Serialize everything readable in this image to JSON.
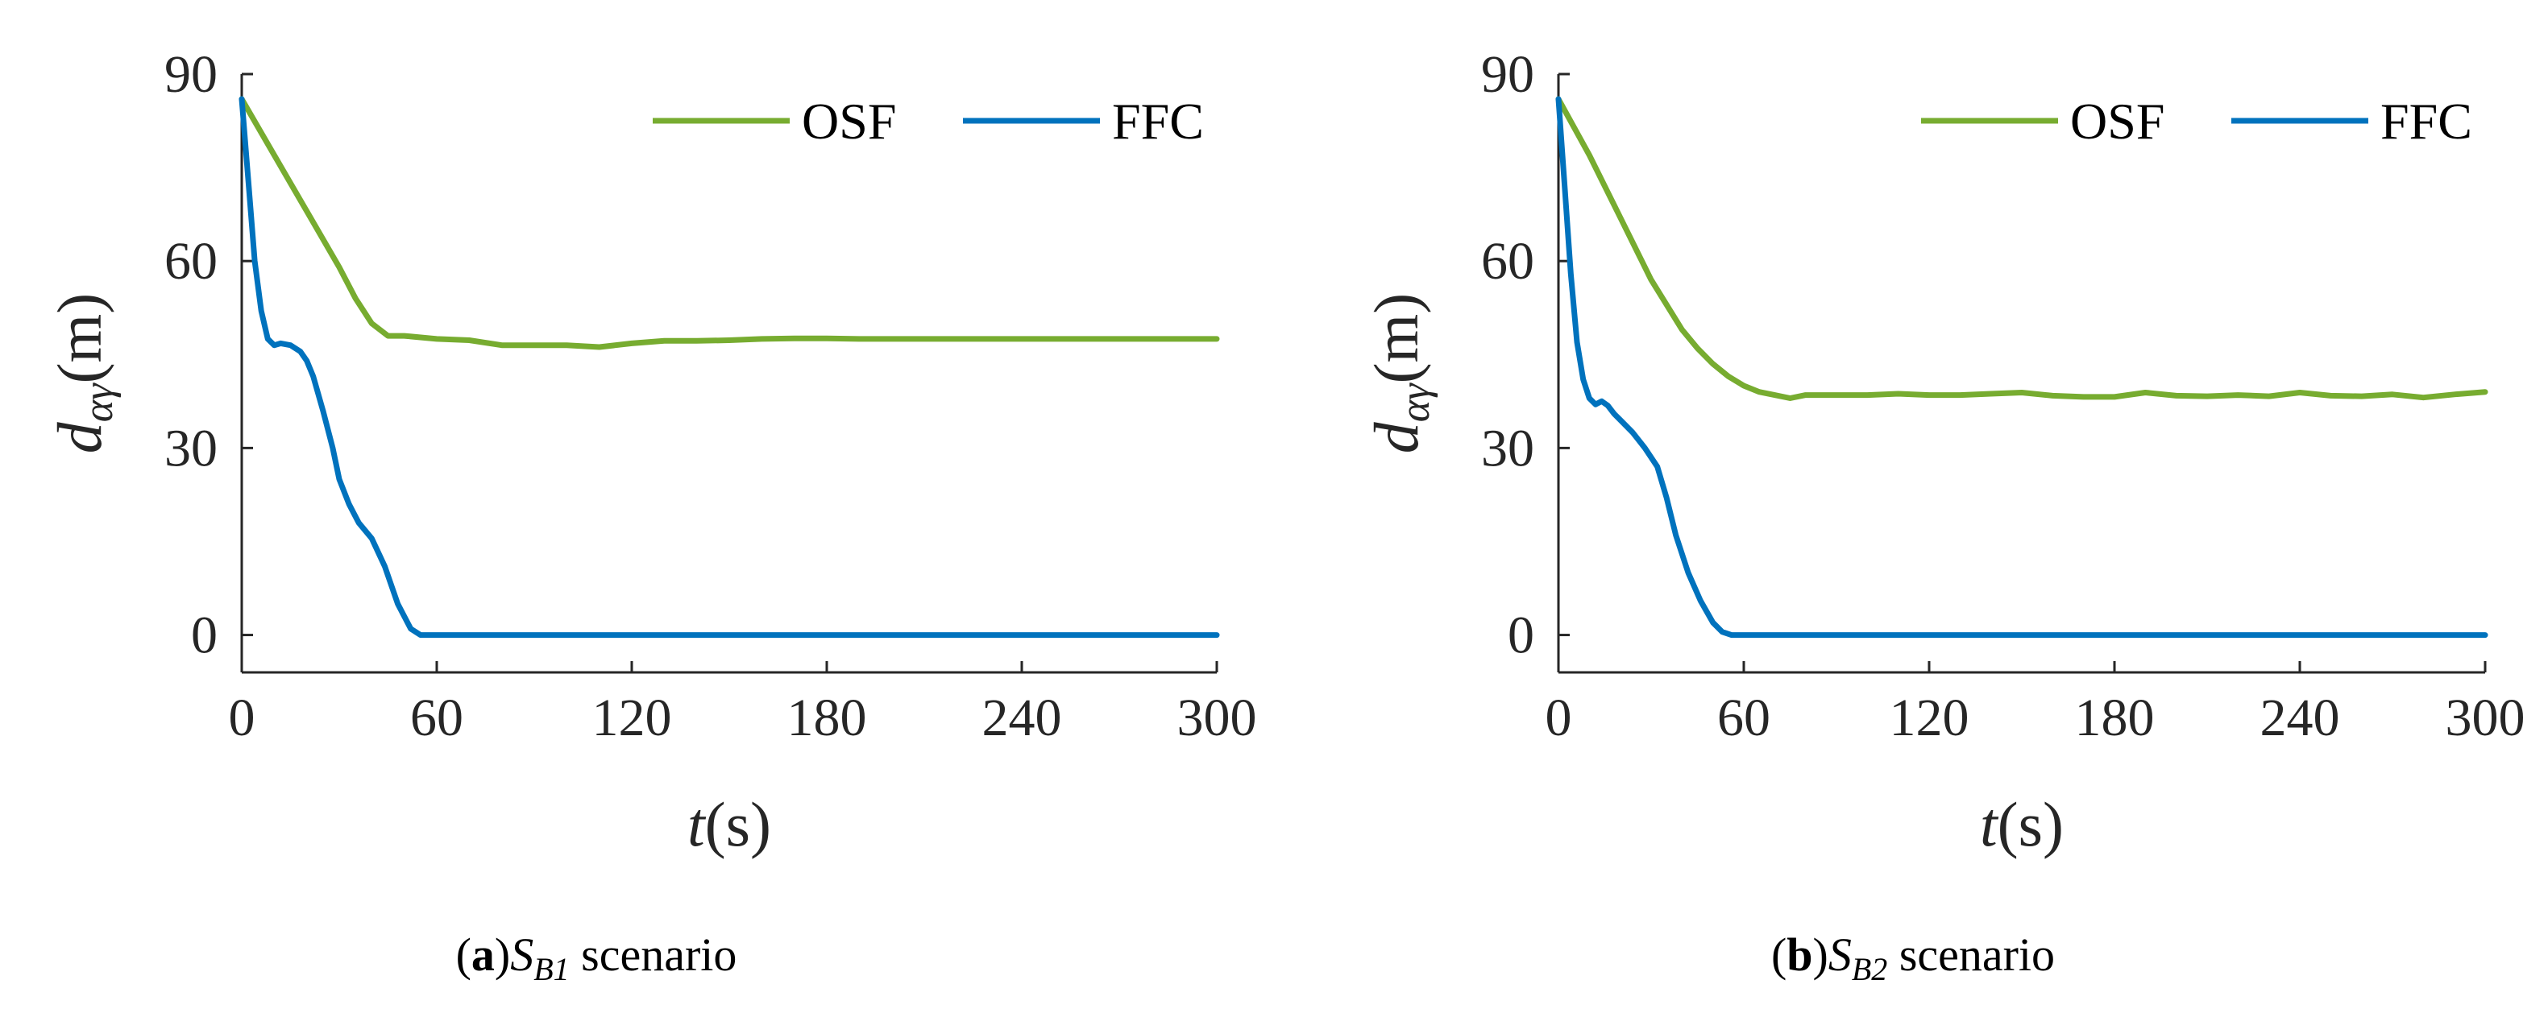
{
  "colors": {
    "OSF": "#77AC30",
    "FFC": "#0072BD"
  },
  "chart_data": [
    {
      "type": "line",
      "caption_letter": "a",
      "caption_sub_main": "S",
      "caption_sub_index": "B1",
      "caption_rest": "scenario",
      "xlabel_var": "t",
      "xlabel_unit": "(s)",
      "ylabel_var": "d",
      "ylabel_sub": "αγ",
      "ylabel_unit": "(m)",
      "xlim": [
        0,
        300
      ],
      "ylim": [
        -6,
        90
      ],
      "xticks": [
        0,
        60,
        120,
        180,
        240,
        300
      ],
      "yticks": [
        0,
        30,
        60,
        90
      ],
      "legend": [
        "OSF",
        "FFC"
      ],
      "legend_position": "top-right",
      "series": [
        {
          "name": "OSF",
          "x": [
            0,
            10,
            20,
            30,
            35,
            40,
            45,
            50,
            60,
            70,
            80,
            90,
            100,
            110,
            120,
            130,
            140,
            150,
            160,
            170,
            180,
            190,
            200,
            220,
            240,
            260,
            280,
            300
          ],
          "y": [
            86,
            77,
            68,
            59,
            54,
            50,
            48,
            48,
            47.5,
            47.3,
            46.5,
            46.5,
            46.5,
            46.2,
            46.8,
            47.2,
            47.2,
            47.3,
            47.5,
            47.6,
            47.6,
            47.5,
            47.5,
            47.5,
            47.5,
            47.5,
            47.5,
            47.5
          ]
        },
        {
          "name": "FFC",
          "x": [
            0,
            2,
            4,
            6,
            8,
            10,
            12,
            15,
            18,
            20,
            22,
            25,
            28,
            30,
            33,
            36,
            40,
            44,
            48,
            52,
            55,
            57,
            60,
            80,
            120,
            180,
            240,
            300
          ],
          "y": [
            86,
            73,
            60,
            52,
            47.5,
            46.5,
            46.8,
            46.5,
            45.5,
            44,
            41.5,
            36,
            30,
            25,
            21,
            18,
            15.5,
            11,
            5,
            1,
            0,
            0,
            0,
            0,
            0,
            0,
            0,
            0
          ]
        }
      ]
    },
    {
      "type": "line",
      "caption_letter": "b",
      "caption_sub_main": "S",
      "caption_sub_index": "B2",
      "caption_rest": "scenario",
      "xlabel_var": "t",
      "xlabel_unit": "(s)",
      "ylabel_var": "d",
      "ylabel_sub": "αγ",
      "ylabel_unit": "(m)",
      "xlim": [
        0,
        300
      ],
      "ylim": [
        -6,
        90
      ],
      "xticks": [
        0,
        60,
        120,
        180,
        240,
        300
      ],
      "yticks": [
        0,
        30,
        60,
        90
      ],
      "legend": [
        "OSF",
        "FFC"
      ],
      "legend_position": "top-right",
      "series": [
        {
          "name": "OSF",
          "x": [
            0,
            10,
            20,
            30,
            40,
            45,
            50,
            55,
            60,
            65,
            70,
            75,
            80,
            90,
            100,
            110,
            120,
            130,
            140,
            150,
            160,
            170,
            180,
            190,
            200,
            210,
            220,
            230,
            240,
            250,
            260,
            270,
            280,
            290,
            300
          ],
          "y": [
            86,
            77,
            67,
            57,
            49,
            46,
            43.5,
            41.5,
            40,
            39,
            38.5,
            38,
            38.5,
            38.5,
            38.5,
            38.7,
            38.5,
            38.5,
            38.7,
            38.9,
            38.4,
            38.2,
            38.2,
            38.9,
            38.4,
            38.3,
            38.5,
            38.3,
            38.9,
            38.4,
            38.3,
            38.6,
            38.1,
            38.6,
            39
          ]
        },
        {
          "name": "FFC",
          "x": [
            0,
            2,
            4,
            6,
            8,
            10,
            12,
            14,
            16,
            18,
            20,
            24,
            28,
            32,
            35,
            38,
            42,
            46,
            50,
            53,
            56,
            60,
            80,
            120,
            180,
            240,
            300
          ],
          "y": [
            86,
            72,
            58,
            47,
            41,
            38,
            37,
            37.5,
            36.8,
            35.5,
            34.5,
            32.5,
            30,
            27,
            22,
            16,
            10,
            5.5,
            2,
            0.5,
            0,
            0,
            0,
            0,
            0,
            0,
            0
          ]
        }
      ]
    }
  ]
}
